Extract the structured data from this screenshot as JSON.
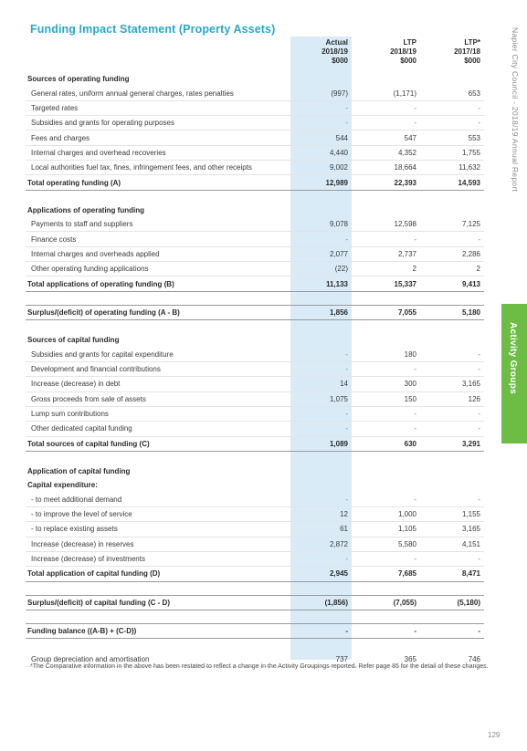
{
  "title": "Funding Impact Statement (Property Assets)",
  "side_label": "Napier City Council - 2018/19 Annual Report",
  "side_tab": "Activity Groups",
  "page_number": "129",
  "columns": [
    {
      "line1": "Actual",
      "line2": "2018/19",
      "line3": "$000"
    },
    {
      "line1": "LTP",
      "line2": "2018/19",
      "line3": "$000"
    },
    {
      "line1": "LTP*",
      "line2": "2017/18",
      "line3": "$000"
    }
  ],
  "rows": [
    {
      "type": "section",
      "label": "Sources of operating funding",
      "a": "",
      "b": "",
      "c": ""
    },
    {
      "type": "item",
      "label": "General rates, uniform annual general charges, rates penalties",
      "a": "(997)",
      "b": "(1,171)",
      "c": "653"
    },
    {
      "type": "item",
      "label": "Targeted rates",
      "a": "-",
      "b": "-",
      "c": "-"
    },
    {
      "type": "item",
      "label": "Subsidies and grants for operating purposes",
      "a": "-",
      "b": "-",
      "c": "-"
    },
    {
      "type": "item",
      "label": "Fees and charges",
      "a": "544",
      "b": "547",
      "c": "553"
    },
    {
      "type": "item",
      "label": "Internal charges and overhead recoveries",
      "a": "4,440",
      "b": "4,352",
      "c": "1,755"
    },
    {
      "type": "item",
      "label": "Local authorities fuel tax, fines, infringement fees, and other receipts",
      "a": "9,002",
      "b": "18,664",
      "c": "11,632"
    },
    {
      "type": "total",
      "label": "Total operating funding (A)",
      "a": "12,989",
      "b": "22,393",
      "c": "14,593"
    },
    {
      "type": "spacer",
      "label": "",
      "a": "",
      "b": "",
      "c": ""
    },
    {
      "type": "section",
      "label": "Applications of operating funding",
      "a": "",
      "b": "",
      "c": ""
    },
    {
      "type": "item",
      "label": "Payments to staff and suppliers",
      "a": "9,078",
      "b": "12,598",
      "c": "7,125"
    },
    {
      "type": "item",
      "label": "Finance costs",
      "a": "-",
      "b": "-",
      "c": "-"
    },
    {
      "type": "item",
      "label": "Internal charges and overheads applied",
      "a": "2,077",
      "b": "2,737",
      "c": "2,286"
    },
    {
      "type": "item",
      "label": "Other operating funding applications",
      "a": "(22)",
      "b": "2",
      "c": "2"
    },
    {
      "type": "total",
      "label": "Total applications of operating funding (B)",
      "a": "11,133",
      "b": "15,337",
      "c": "9,413"
    },
    {
      "type": "spacer",
      "label": "",
      "a": "",
      "b": "",
      "c": ""
    },
    {
      "type": "total",
      "label": "Surplus/(deficit) of operating funding (A - B)",
      "a": "1,856",
      "b": "7,055",
      "c": "5,180"
    },
    {
      "type": "spacer",
      "label": "",
      "a": "",
      "b": "",
      "c": ""
    },
    {
      "type": "section",
      "label": "Sources of capital funding",
      "a": "",
      "b": "",
      "c": ""
    },
    {
      "type": "item",
      "label": "Subsidies and grants for capital expenditure",
      "a": "-",
      "b": "180",
      "c": "-"
    },
    {
      "type": "item",
      "label": "Development and financial contributions",
      "a": "-",
      "b": "-",
      "c": "-"
    },
    {
      "type": "item",
      "label": "Increase (decrease) in debt",
      "a": "14",
      "b": "300",
      "c": "3,165"
    },
    {
      "type": "item",
      "label": "Gross proceeds from sale of assets",
      "a": "1,075",
      "b": "150",
      "c": "126"
    },
    {
      "type": "item",
      "label": "Lump sum contributions",
      "a": "-",
      "b": "-",
      "c": "-"
    },
    {
      "type": "item",
      "label": "Other dedicated capital funding",
      "a": "-",
      "b": "-",
      "c": "-"
    },
    {
      "type": "total",
      "label": "Total sources of capital funding (C)",
      "a": "1,089",
      "b": "630",
      "c": "3,291"
    },
    {
      "type": "spacer",
      "label": "",
      "a": "",
      "b": "",
      "c": ""
    },
    {
      "type": "section",
      "label": "Application of capital funding",
      "a": "",
      "b": "",
      "c": ""
    },
    {
      "type": "section",
      "label": "Capital expenditure:",
      "a": "",
      "b": "",
      "c": ""
    },
    {
      "type": "item",
      "label": "- to meet additional demand",
      "a": "-",
      "b": "-",
      "c": "-"
    },
    {
      "type": "item",
      "label": "- to improve the level of service",
      "a": "12",
      "b": "1,000",
      "c": "1,155"
    },
    {
      "type": "item",
      "label": "- to replace existing assets",
      "a": "61",
      "b": "1,105",
      "c": "3,165"
    },
    {
      "type": "item",
      "label": "Increase (decrease) in reserves",
      "a": "2,872",
      "b": "5,580",
      "c": "4,151"
    },
    {
      "type": "item",
      "label": "Increase (decrease) of investments",
      "a": "-",
      "b": "-",
      "c": "-"
    },
    {
      "type": "total",
      "label": "Total application of capital funding (D)",
      "a": "2,945",
      "b": "7,685",
      "c": "8,471"
    },
    {
      "type": "spacer",
      "label": "",
      "a": "",
      "b": "",
      "c": ""
    },
    {
      "type": "total",
      "label": "Surplus/(deficit) of capital funding (C - D)",
      "a": "(1,856)",
      "b": "(7,055)",
      "c": "(5,180)"
    },
    {
      "type": "spacer",
      "label": "",
      "a": "",
      "b": "",
      "c": ""
    },
    {
      "type": "total",
      "label": "Funding balance ((A-B) + (C-D))",
      "a": "-",
      "b": "-",
      "c": "-"
    },
    {
      "type": "spacer",
      "label": "",
      "a": "",
      "b": "",
      "c": ""
    },
    {
      "type": "item",
      "label": "Group depreciation and amortisation",
      "a": "737",
      "b": "365",
      "c": "746"
    }
  ],
  "footnote": "*The Comparative information in the above has been restated to reflect a change in the Activity Groupings reported. Refer page 85 for the detail of these changes."
}
